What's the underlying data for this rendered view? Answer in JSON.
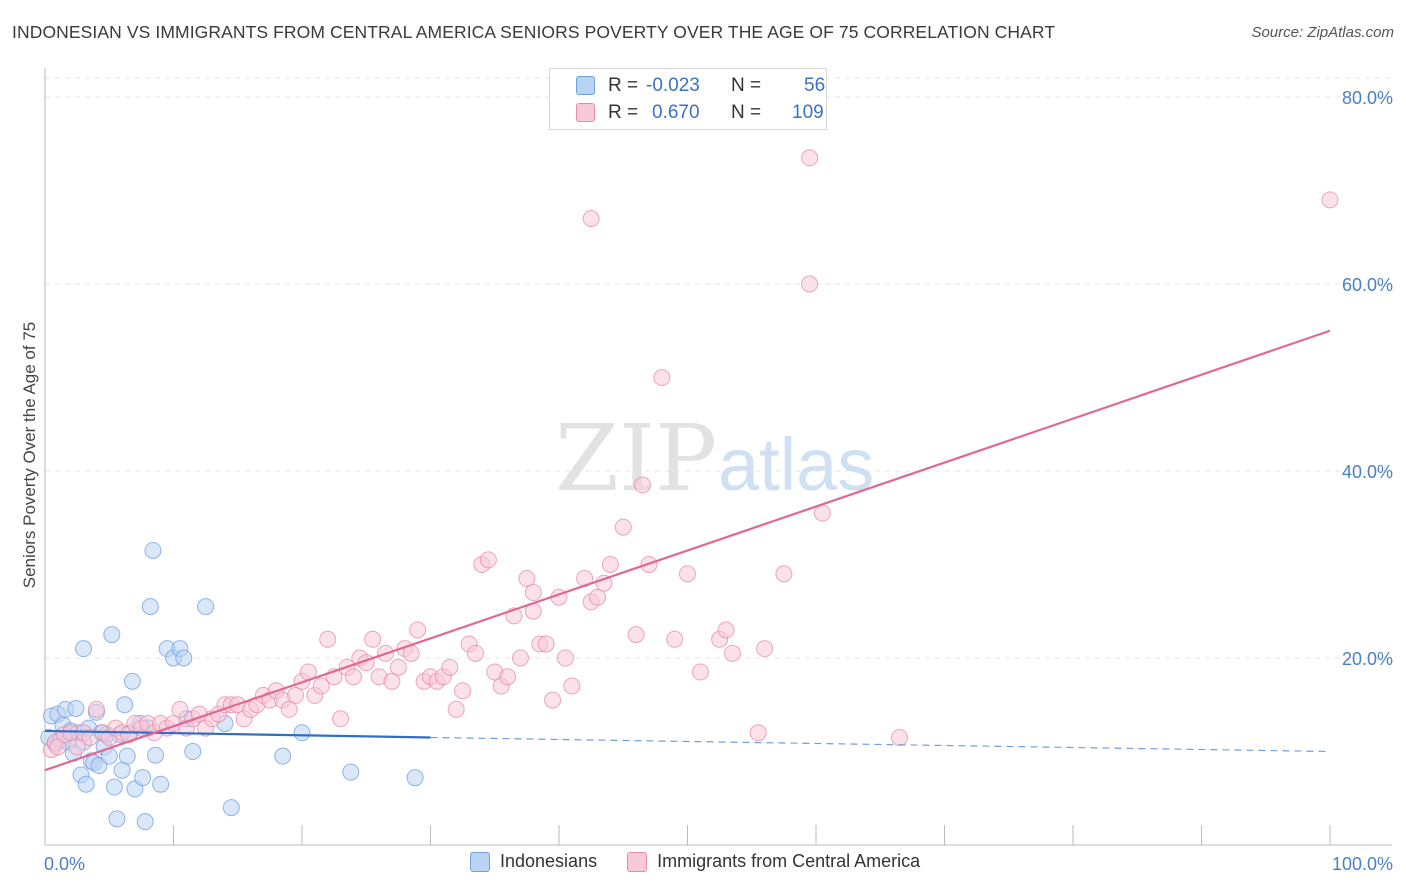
{
  "title": "INDONESIAN VS IMMIGRANTS FROM CENTRAL AMERICA SENIORS POVERTY OVER THE AGE OF 75 CORRELATION CHART",
  "source": "Source: ZipAtlas.com",
  "watermark": {
    "zip": "ZIP",
    "atlas": "atlas"
  },
  "stats": {
    "rows": [
      {
        "r_label": "R =",
        "r_value": "-0.023",
        "n_label": "N =",
        "n_value": "56",
        "color": "#b9d3f3"
      },
      {
        "r_label": "R =",
        "r_value": "0.670",
        "n_label": "N =",
        "n_value": "109",
        "color": "#f8c9d8"
      }
    ]
  },
  "legend": {
    "items": [
      {
        "label": "Indonesians",
        "color": "#b9d3f3"
      },
      {
        "label": "Immigrants from Central America",
        "color": "#f8c9d8"
      }
    ]
  },
  "chart_data": {
    "type": "scatter",
    "title": "INDONESIAN VS IMMIGRANTS FROM CENTRAL AMERICA SENIORS POVERTY OVER THE AGE OF 75 CORRELATION CHART",
    "ylabel": "Seniors Poverty Over the Age of 75",
    "xlabel": "",
    "x_range": [
      0,
      100
    ],
    "y_range": [
      0,
      84
    ],
    "x_ticks": [
      {
        "value": 0,
        "label": "0.0%"
      },
      {
        "value": 100,
        "label": "100.0%"
      }
    ],
    "y_ticks": [
      {
        "value": 20,
        "label": "20.0%"
      },
      {
        "value": 40,
        "label": "40.0%"
      },
      {
        "value": 60,
        "label": "60.0%"
      },
      {
        "value": 80,
        "label": "80.0%"
      }
    ],
    "grid": true,
    "legend_position": "bottom",
    "series": [
      {
        "name": "Indonesians",
        "color": "#6e9fe0",
        "fill": "#b9d3f3",
        "trend": {
          "x0": 0,
          "y0": 12.2,
          "x1": 30,
          "y1": 11.5,
          "dashed_to_x": 100,
          "dashed_to_y": 10.0
        },
        "points": [
          [
            0.3,
            11.5
          ],
          [
            0.5,
            13.8
          ],
          [
            0.8,
            10.8
          ],
          [
            1.0,
            14.0
          ],
          [
            1.2,
            11.2
          ],
          [
            1.4,
            12.8
          ],
          [
            1.6,
            14.5
          ],
          [
            1.8,
            11.0
          ],
          [
            2.0,
            12.2
          ],
          [
            2.2,
            9.8
          ],
          [
            2.4,
            14.6
          ],
          [
            2.6,
            12.0
          ],
          [
            2.8,
            7.5
          ],
          [
            3.0,
            11.0
          ],
          [
            3.2,
            6.5
          ],
          [
            3.4,
            12.5
          ],
          [
            3.6,
            9.0
          ],
          [
            3.8,
            8.8
          ],
          [
            4.0,
            14.2
          ],
          [
            4.2,
            8.5
          ],
          [
            4.4,
            12.0
          ],
          [
            4.6,
            10.5
          ],
          [
            4.8,
            11.8
          ],
          [
            5.0,
            9.5
          ],
          [
            5.2,
            22.5
          ],
          [
            5.4,
            6.2
          ],
          [
            5.6,
            2.8
          ],
          [
            5.8,
            11.8
          ],
          [
            6.0,
            8.0
          ],
          [
            6.2,
            15.0
          ],
          [
            6.4,
            9.5
          ],
          [
            6.6,
            12.0
          ],
          [
            6.8,
            17.5
          ],
          [
            7.0,
            6.0
          ],
          [
            7.4,
            13.0
          ],
          [
            7.6,
            7.2
          ],
          [
            7.8,
            2.5
          ],
          [
            8.0,
            12.5
          ],
          [
            8.2,
            25.5
          ],
          [
            8.4,
            31.5
          ],
          [
            8.6,
            9.6
          ],
          [
            9.0,
            6.5
          ],
          [
            9.5,
            21.0
          ],
          [
            10.0,
            20.0
          ],
          [
            10.5,
            21.0
          ],
          [
            10.8,
            20.0
          ],
          [
            11.0,
            13.5
          ],
          [
            11.5,
            10.0
          ],
          [
            12.5,
            25.5
          ],
          [
            14.0,
            13.0
          ],
          [
            14.5,
            4.0
          ],
          [
            18.5,
            9.5
          ],
          [
            20.0,
            12.0
          ],
          [
            23.8,
            7.8
          ],
          [
            28.8,
            7.2
          ],
          [
            3.0,
            21.0
          ]
        ]
      },
      {
        "name": "Immigrants from Central America",
        "color": "#e88aa8",
        "fill": "#f8c9d8",
        "trend": {
          "x0": 0,
          "y0": 8.0,
          "x1": 100,
          "y1": 55.0
        },
        "points": [
          [
            0.5,
            10.2
          ],
          [
            0.8,
            11.0
          ],
          [
            1.0,
            10.5
          ],
          [
            1.5,
            11.8
          ],
          [
            2.0,
            12.0
          ],
          [
            2.5,
            10.5
          ],
          [
            3.0,
            12.0
          ],
          [
            3.5,
            11.5
          ],
          [
            4.0,
            14.5
          ],
          [
            4.5,
            12.0
          ],
          [
            5.0,
            11.5
          ],
          [
            5.5,
            12.5
          ],
          [
            6.0,
            12.0
          ],
          [
            6.5,
            11.8
          ],
          [
            7.0,
            13.0
          ],
          [
            7.5,
            12.5
          ],
          [
            8.0,
            13.0
          ],
          [
            8.5,
            12.0
          ],
          [
            9.0,
            13.0
          ],
          [
            9.5,
            12.5
          ],
          [
            10.0,
            13.0
          ],
          [
            10.5,
            14.5
          ],
          [
            11.0,
            12.5
          ],
          [
            11.5,
            13.5
          ],
          [
            12.0,
            14.0
          ],
          [
            12.5,
            12.5
          ],
          [
            13.0,
            13.5
          ],
          [
            13.5,
            14.0
          ],
          [
            14.0,
            15.0
          ],
          [
            14.5,
            15.0
          ],
          [
            15.0,
            15.0
          ],
          [
            15.5,
            13.5
          ],
          [
            16.0,
            14.5
          ],
          [
            16.5,
            15.0
          ],
          [
            17.0,
            16.0
          ],
          [
            17.5,
            15.5
          ],
          [
            18.0,
            16.5
          ],
          [
            18.5,
            15.5
          ],
          [
            19.0,
            14.5
          ],
          [
            19.5,
            16.0
          ],
          [
            20.0,
            17.5
          ],
          [
            20.5,
            18.5
          ],
          [
            21.0,
            16.0
          ],
          [
            21.5,
            17.0
          ],
          [
            22.0,
            22.0
          ],
          [
            22.5,
            18.0
          ],
          [
            23.0,
            13.5
          ],
          [
            23.5,
            19.0
          ],
          [
            24.0,
            18.0
          ],
          [
            24.5,
            20.0
          ],
          [
            25.0,
            19.5
          ],
          [
            25.5,
            22.0
          ],
          [
            26.0,
            18.0
          ],
          [
            26.5,
            20.5
          ],
          [
            27.0,
            17.5
          ],
          [
            27.5,
            19.0
          ],
          [
            28.0,
            21.0
          ],
          [
            28.5,
            20.5
          ],
          [
            29.0,
            23.0
          ],
          [
            29.5,
            17.5
          ],
          [
            30.0,
            18.0
          ],
          [
            30.5,
            17.5
          ],
          [
            31.0,
            18.0
          ],
          [
            31.5,
            19.0
          ],
          [
            32.0,
            14.5
          ],
          [
            32.5,
            16.5
          ],
          [
            33.0,
            21.5
          ],
          [
            33.5,
            20.5
          ],
          [
            34.0,
            30.0
          ],
          [
            34.5,
            30.5
          ],
          [
            35.0,
            18.5
          ],
          [
            35.5,
            17.0
          ],
          [
            36.0,
            18.0
          ],
          [
            36.5,
            24.5
          ],
          [
            37.0,
            20.0
          ],
          [
            37.5,
            28.5
          ],
          [
            38.0,
            27.0
          ],
          [
            38.5,
            21.5
          ],
          [
            39.0,
            21.5
          ],
          [
            39.5,
            15.5
          ],
          [
            40.0,
            26.5
          ],
          [
            40.5,
            20.0
          ],
          [
            41.0,
            17.0
          ],
          [
            42.0,
            28.5
          ],
          [
            42.5,
            26.0
          ],
          [
            43.0,
            26.5
          ],
          [
            43.5,
            28.0
          ],
          [
            44.0,
            30.0
          ],
          [
            45.0,
            34.0
          ],
          [
            46.5,
            38.5
          ],
          [
            47.0,
            30.0
          ],
          [
            48.0,
            50.0
          ],
          [
            50.0,
            29.0
          ],
          [
            52.5,
            22.0
          ],
          [
            53.0,
            23.0
          ],
          [
            53.5,
            20.5
          ],
          [
            51.0,
            18.5
          ],
          [
            55.5,
            12.0
          ],
          [
            56.0,
            21.0
          ],
          [
            57.5,
            29.0
          ],
          [
            59.5,
            60.0
          ],
          [
            59.5,
            73.5
          ],
          [
            60.5,
            35.5
          ],
          [
            66.5,
            11.5
          ],
          [
            42.5,
            67.0
          ],
          [
            100.0,
            69.0
          ],
          [
            38.0,
            25.0
          ],
          [
            46.0,
            22.5
          ],
          [
            49.0,
            22.0
          ]
        ]
      }
    ]
  }
}
